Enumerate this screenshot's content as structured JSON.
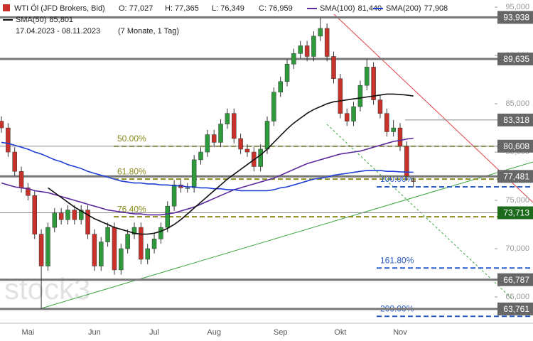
{
  "header": {
    "instrument": "WTI Öl (JFD Brokers, Bid)",
    "ohlc": [
      "O: 77,027",
      "H: 77,365",
      "L: 76,349",
      "C: 76,959"
    ],
    "period": "17.04.2023 - 08.11.2023",
    "duration": "(7 Monate, 1 Tag)"
  },
  "chart_data": {
    "type": "candlestick",
    "categories": [
      null,
      null,
      null,
      null,
      "Mai",
      null,
      null,
      null,
      null,
      null,
      null,
      null,
      null,
      null,
      "Jun",
      null,
      null,
      null,
      null,
      null,
      null,
      null,
      null,
      "Jul",
      null,
      null,
      null,
      null,
      null,
      null,
      null,
      null,
      "Aug",
      null,
      null,
      null,
      null,
      null,
      null,
      null,
      null,
      null,
      "Sep",
      null,
      null,
      null,
      null,
      null,
      null,
      null,
      null,
      "Okt",
      null,
      null,
      null,
      null,
      null,
      null,
      null,
      null,
      "Nov",
      null,
      null
    ],
    "open": [
      83.2,
      82.5,
      80,
      78,
      76.3,
      75.5,
      71.5,
      68.2,
      72.2,
      73.7,
      73,
      74,
      73,
      74,
      71.5,
      68.2,
      70.7,
      72.2,
      67.8,
      70,
      71.5,
      72.2,
      68.9,
      70,
      71,
      72.2,
      74.4,
      76.6,
      76.3,
      76.3,
      79.2,
      80,
      81.8,
      81,
      82.9,
      84,
      81.4,
      80.3,
      80,
      78.5,
      80.3,
      83.2,
      86.2,
      87.3,
      89.1,
      90.2,
      91,
      89.9,
      92,
      92.8,
      89.9,
      87.6,
      84,
      83.2,
      84.7,
      86.9,
      88.8,
      85.4,
      84,
      82.1,
      82.5,
      80.6,
      77.027
    ],
    "high": [
      83.7,
      83,
      80.5,
      78.5,
      76.8,
      76,
      72,
      72.7,
      74.2,
      74.2,
      74.5,
      74.5,
      74.5,
      74.5,
      72,
      71.2,
      72.7,
      72.7,
      70.5,
      72,
      72.7,
      72.7,
      70.5,
      71.5,
      72.7,
      74.9,
      77.1,
      77.1,
      76.8,
      79.7,
      80.5,
      82.3,
      82.3,
      83.4,
      84.5,
      84.5,
      81.9,
      80.8,
      80.5,
      80.8,
      83.7,
      86.7,
      87.8,
      89.6,
      90.7,
      91.5,
      91.5,
      92.5,
      93.938,
      93.3,
      90.4,
      88.1,
      84.5,
      85.2,
      87.4,
      89.635,
      89.3,
      85.9,
      84.5,
      83.318,
      83,
      81.1,
      77.365
    ],
    "low": [
      82,
      79.5,
      77.5,
      75.8,
      75,
      71,
      63.761,
      67.7,
      71.7,
      72.5,
      72.5,
      72.5,
      72.5,
      71,
      67.7,
      67.7,
      70.2,
      67.3,
      67.3,
      69.5,
      71,
      68.4,
      68.4,
      69.5,
      70.5,
      71.7,
      73.9,
      75.8,
      75.8,
      75.8,
      78.7,
      79.5,
      80.5,
      80.5,
      82.4,
      80.9,
      79.8,
      79.5,
      78,
      78,
      79.8,
      82.7,
      85.7,
      86.8,
      88.6,
      89.7,
      89.4,
      89.4,
      91.5,
      89.4,
      87.1,
      83.5,
      82.7,
      82.7,
      84.2,
      86.4,
      84.9,
      83.5,
      81.6,
      81.6,
      80.1,
      77,
      76.349
    ],
    "close": [
      82.5,
      80,
      78,
      76.3,
      75.5,
      71.5,
      68.2,
      72.2,
      73.7,
      73,
      74,
      73,
      74,
      71.5,
      68.2,
      70.7,
      72.2,
      67.8,
      70,
      71.5,
      72.2,
      68.9,
      70,
      71,
      72.2,
      74.4,
      76.6,
      76.3,
      76.3,
      79.2,
      80,
      81.8,
      81,
      82.9,
      84,
      81.4,
      80.3,
      80,
      78.5,
      80.3,
      83.2,
      86.2,
      87.3,
      89.1,
      90.2,
      91,
      89.9,
      92,
      92.8,
      89.9,
      87.6,
      84,
      83.2,
      84.7,
      86.9,
      88.8,
      85.4,
      84,
      82.1,
      82.5,
      80.6,
      77.5,
      76.959
    ],
    "up_color": "#2f9a3c",
    "down_color": "#c8322a",
    "series": [
      {
        "name": "SMA(100)",
        "value_label": "81,440",
        "color": "#5b2a9e",
        "values": [
          76.8,
          76.6,
          76.4,
          76.3,
          76.2,
          76.0,
          75.9,
          75.8,
          75.6,
          75.4,
          75.2,
          75.0,
          74.8,
          74.6,
          74.4,
          74.2,
          74.0,
          73.9,
          73.8,
          73.7,
          73.6,
          73.6,
          73.5,
          73.5,
          73.5,
          73.6,
          73.7,
          73.9,
          74.1,
          74.3,
          74.6,
          74.9,
          75.2,
          75.5,
          75.8,
          76.1,
          76.3,
          76.5,
          76.7,
          76.9,
          77.1,
          77.3,
          77.6,
          77.9,
          78.2,
          78.5,
          78.8,
          79.0,
          79.2,
          79.4,
          79.6,
          79.8,
          79.9,
          80.0,
          80.1,
          80.3,
          80.5,
          80.7,
          80.9,
          81.1,
          81.2,
          81.35,
          81.44
        ]
      },
      {
        "name": "SMA(200)",
        "value_label": "77,908",
        "color": "#1f3fd6",
        "values": [
          81,
          80.9,
          80.7,
          80.5,
          80.3,
          80.0,
          79.8,
          79.5,
          79.2,
          79.0,
          78.7,
          78.5,
          78.3,
          78.0,
          77.8,
          77.6,
          77.4,
          77.2,
          77.0,
          76.9,
          76.8,
          76.8,
          76.7,
          76.7,
          76.6,
          76.6,
          76.5,
          76.5,
          76.4,
          76.4,
          76.3,
          76.3,
          76.2,
          76.2,
          76.1,
          76.1,
          76.0,
          76.0,
          76.0,
          76.0,
          76.0,
          76.1,
          76.3,
          76.4,
          76.6,
          76.8,
          77.0,
          77.2,
          77.3,
          77.4,
          77.6,
          77.7,
          77.8,
          77.9,
          78.0,
          78.1,
          78.1,
          78.1,
          78.0,
          78.0,
          77.95,
          77.93,
          77.908
        ]
      },
      {
        "name": "SMA(50)",
        "value_label": "85,801",
        "color": "#111111",
        "values": [
          null,
          null,
          null,
          null,
          null,
          null,
          null,
          76.3,
          75.8,
          75.3,
          74.8,
          74.3,
          73.9,
          73.5,
          73.1,
          72.8,
          72.5,
          72.2,
          72.0,
          71.8,
          71.6,
          71.5,
          71.5,
          71.6,
          71.8,
          72.1,
          72.5,
          73.0,
          73.6,
          74.2,
          74.8,
          75.4,
          76.0,
          76.6,
          77.2,
          77.7,
          78.2,
          78.7,
          79.2,
          79.7,
          80.3,
          81.0,
          81.7,
          82.4,
          83.0,
          83.5,
          84.0,
          84.4,
          84.7,
          85.0,
          85.2,
          85.3,
          85.4,
          85.5,
          85.6,
          85.7,
          85.8,
          85.9,
          86.0,
          86.0,
          85.95,
          85.9,
          85.801
        ]
      }
    ],
    "ylim": [
      62.28,
      95.74
    ],
    "yticks": [
      {
        "value": 65,
        "label": "65,000"
      },
      {
        "value": 70,
        "label": "70,000"
      },
      {
        "value": 75,
        "label": "75,000"
      },
      {
        "value": 80,
        "label": "80,000"
      },
      {
        "value": 85,
        "label": "85,000"
      },
      {
        "value": 90,
        "label": "90,000"
      },
      {
        "value": 95,
        "label": "95,000"
      }
    ],
    "grid": false,
    "levels": [
      {
        "value": 93.938,
        "label": "93,938",
        "color": "#666666",
        "thick": true
      },
      {
        "value": 89.635,
        "label": "89,635",
        "color": "#666666",
        "thick": true
      },
      {
        "value": 83.318,
        "label": "83,318",
        "color": "#666666",
        "thick": false
      },
      {
        "value": 80.608,
        "label": "80,608",
        "color": "#666666",
        "thick": false
      },
      {
        "value": 77.481,
        "label": "77,481",
        "color": "#666666",
        "thick": true
      },
      {
        "value": 73.713,
        "label": "73,713",
        "color": "#1d6a1d",
        "thick": false
      },
      {
        "value": 66.787,
        "label": "66,787",
        "color": "#666666",
        "thick": true
      },
      {
        "value": 63.761,
        "label": "63,761",
        "color": "#666666",
        "thick": true
      }
    ],
    "fib_levels": [
      {
        "value": 80.6,
        "label": "50.00%",
        "color": "#8a8a1a"
      },
      {
        "value": 77.2,
        "label": "61.80%",
        "color": "#8a8a1a"
      },
      {
        "value": 73.3,
        "label": "76.40%",
        "color": "#8a8a1a"
      },
      {
        "value": 76.4,
        "label": "100.00%",
        "color": "#2a5cc8"
      },
      {
        "value": 68.0,
        "label": "161.80%",
        "color": "#2a5cc8"
      },
      {
        "value": 63.0,
        "label": "200.00%",
        "color": "#2a5cc8"
      }
    ],
    "watermark": "stock3"
  }
}
